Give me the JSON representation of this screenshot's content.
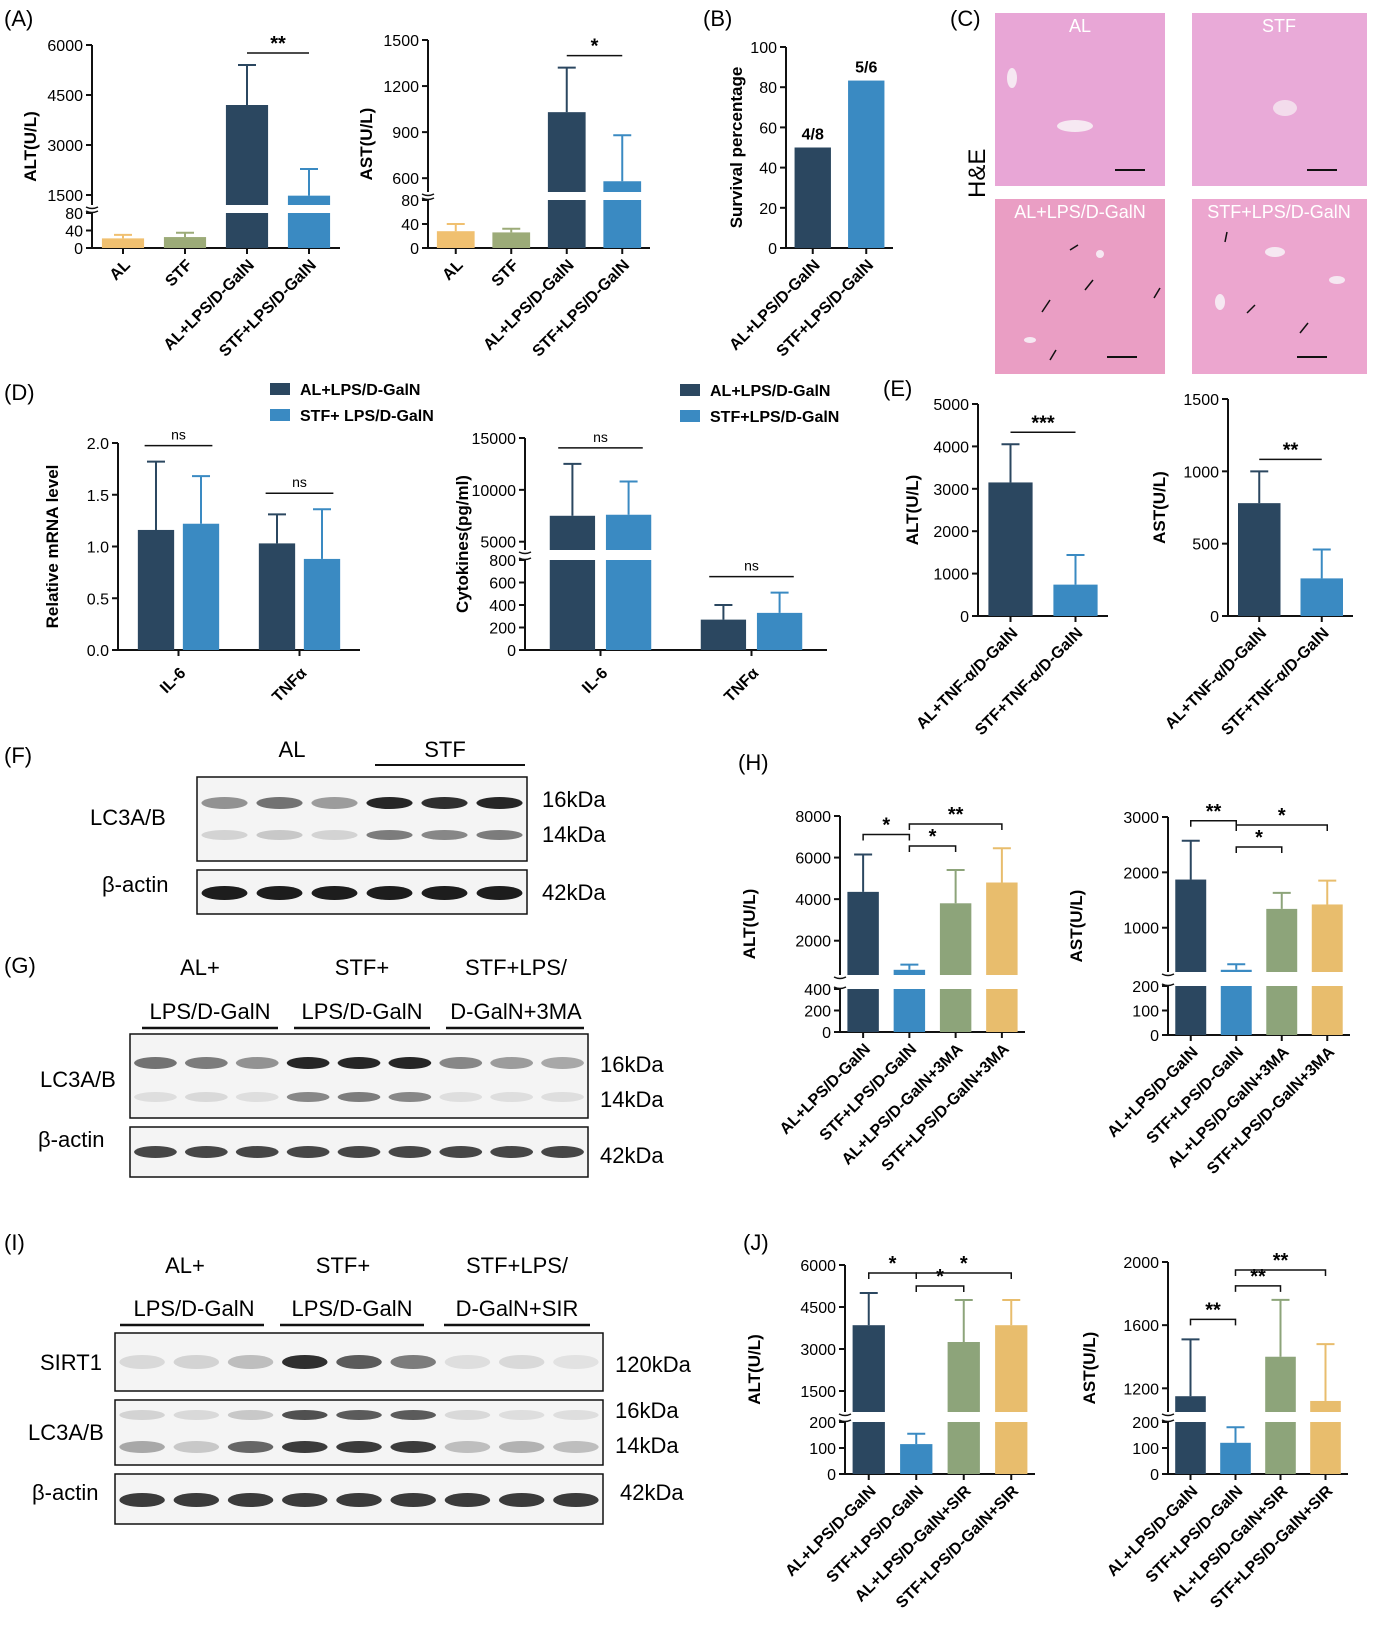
{
  "colors": {
    "AL": "#f0c070",
    "STF": "#9cab78",
    "dark": "#2b4760",
    "light": "#3a8ac2",
    "green3MA": "#8da47a",
    "yellow3MA": "#e8bd6d",
    "he_bg": "#e9a9d4"
  },
  "panels": {
    "A": "(A)",
    "B": "(B)",
    "C": "(C)",
    "D": "(D)",
    "E": "(E)",
    "F": "(F)",
    "G": "(G)",
    "H": "(H)",
    "I": "(I)",
    "J": "(J)"
  },
  "he": {
    "stain": "H&E",
    "labels": [
      "AL",
      "STF",
      "AL+LPS/D-GalN",
      "STF+LPS/D-GalN"
    ]
  },
  "blots": {
    "F": {
      "groups": [
        "AL",
        "STF"
      ],
      "rows": [
        "LC3A/B",
        "β-actin"
      ],
      "kda": [
        "16kDa",
        "14kDa",
        "42kDa"
      ]
    },
    "G": {
      "groups_line1": [
        "AL+",
        "STF+",
        "STF+LPS/"
      ],
      "groups_line2": [
        "LPS/D-GalN",
        "LPS/D-GalN",
        "D-GalN+3MA"
      ],
      "rows": [
        "LC3A/B",
        "β-actin"
      ],
      "kda": [
        "16kDa",
        "14kDa",
        "42kDa"
      ]
    },
    "I": {
      "groups_line1": [
        "AL+",
        "STF+",
        "STF+LPS/"
      ],
      "groups_line2": [
        "LPS/D-GalN",
        "LPS/D-GalN",
        "D-GalN+SIR"
      ],
      "rows": [
        "SIRT1",
        "LC3A/B",
        "β-actin"
      ],
      "kda": [
        "120kDa",
        "16kDa",
        "14kDa",
        "42kDa"
      ]
    }
  },
  "chart_data": [
    {
      "id": "A_ALT",
      "type": "bar",
      "ylabel": "ALT(U/L)",
      "categories": [
        "AL",
        "STF",
        "AL+LPS/D-GalN",
        "STF+LPS/D-GalN"
      ],
      "values": [
        22,
        25,
        4200,
        1480
      ],
      "errors": [
        8,
        10,
        1200,
        800
      ],
      "broken_axis": {
        "lower": [
          0,
          80
        ],
        "upper": [
          1200,
          6000
        ]
      },
      "lower_ticks": [
        "0",
        "40",
        "80"
      ],
      "upper_ticks": [
        "1500",
        "3000",
        "4500",
        "6000"
      ],
      "colors": [
        "#f0c070",
        "#9cab78",
        "#2b4760",
        "#3a8ac2"
      ],
      "sig": [
        {
          "from": 2,
          "to": 3,
          "text": "**"
        }
      ]
    },
    {
      "id": "A_AST",
      "type": "bar",
      "ylabel": "AST(U/L)",
      "categories": [
        "AL",
        "STF",
        "AL+LPS/D-GalN",
        "STF+LPS/D-GalN"
      ],
      "values": [
        28,
        26,
        1030,
        580
      ],
      "errors": [
        12,
        6,
        290,
        300
      ],
      "broken_axis": {
        "lower": [
          0,
          80
        ],
        "upper": [
          510,
          1500
        ]
      },
      "lower_ticks": [
        "0",
        "40",
        "80"
      ],
      "upper_ticks": [
        "600",
        "900",
        "1200",
        "1500"
      ],
      "colors": [
        "#f0c070",
        "#9cab78",
        "#2b4760",
        "#3a8ac2"
      ],
      "sig": [
        {
          "from": 2,
          "to": 3,
          "text": "*"
        }
      ]
    },
    {
      "id": "B_survival",
      "type": "bar",
      "ylabel": "Survival percentage",
      "categories": [
        "AL+LPS/D-GalN",
        "STF+LPS/D-GalN"
      ],
      "values": [
        50,
        83.3
      ],
      "bar_labels": [
        "4/8",
        "5/6"
      ],
      "ylim": [
        0,
        100
      ],
      "ticks": [
        "0",
        "20",
        "40",
        "60",
        "80",
        "100"
      ],
      "colors": [
        "#2b4760",
        "#3a8ac2"
      ]
    },
    {
      "id": "D_mRNA",
      "type": "bar",
      "ylabel": "Relative mRNA level",
      "categories": [
        "IL-6",
        "TNFα"
      ],
      "series": [
        {
          "name": "AL+LPS/D-GalN",
          "values": [
            1.16,
            1.03
          ],
          "errors": [
            0.66,
            0.28
          ]
        },
        {
          "name": "STF+ LPS/D-GalN",
          "values": [
            1.22,
            0.88
          ],
          "errors": [
            0.46,
            0.48
          ]
        }
      ],
      "ylim": [
        0,
        2.0
      ],
      "ticks": [
        "0.0",
        "0.5",
        "1.0",
        "1.5",
        "2.0"
      ],
      "sig": [
        {
          "group": 0,
          "text": "ns"
        },
        {
          "group": 1,
          "text": "ns"
        }
      ]
    },
    {
      "id": "D_cytokines",
      "type": "bar",
      "ylabel": "Cytokines(pg/ml)",
      "categories": [
        "IL-6",
        "TNFα"
      ],
      "series": [
        {
          "name": "AL+LPS/D-GalN",
          "values": [
            7500,
            270
          ],
          "errors": [
            5000,
            130
          ]
        },
        {
          "name": "STF+LPS/D-GalN",
          "values": [
            7600,
            330
          ],
          "errors": [
            3200,
            180
          ]
        }
      ],
      "broken_axis": {
        "lower": [
          0,
          800
        ],
        "upper": [
          4200,
          15000
        ]
      },
      "lower_ticks": [
        "0",
        "200",
        "400",
        "600",
        "800"
      ],
      "upper_ticks": [
        "5000",
        "10000",
        "15000"
      ],
      "sig": [
        {
          "group": 0,
          "text": "ns"
        },
        {
          "group": 1,
          "text": "ns"
        }
      ]
    },
    {
      "id": "E_ALT",
      "type": "bar",
      "ylabel": "ALT(U/L)",
      "categories": [
        "AL+TNF-α/D-GalN",
        "STF+TNF-α/D-GalN"
      ],
      "values": [
        3150,
        740
      ],
      "errors": [
        900,
        700
      ],
      "ylim": [
        0,
        5000
      ],
      "ticks": [
        "0",
        "1000",
        "2000",
        "3000",
        "4000",
        "5000"
      ],
      "colors": [
        "#2b4760",
        "#3a8ac2"
      ],
      "sig": [
        {
          "from": 0,
          "to": 1,
          "text": "***"
        }
      ]
    },
    {
      "id": "E_AST",
      "type": "bar",
      "ylabel": "AST(U/L)",
      "categories": [
        "AL+TNF-α/D-GalN",
        "STF+TNF-α/D-GalN"
      ],
      "values": [
        780,
        260
      ],
      "errors": [
        220,
        200
      ],
      "ylim": [
        0,
        1500
      ],
      "ticks": [
        "0",
        "500",
        "1000",
        "1500"
      ],
      "colors": [
        "#2b4760",
        "#3a8ac2"
      ],
      "sig": [
        {
          "from": 0,
          "to": 1,
          "text": "**"
        }
      ]
    },
    {
      "id": "H_ALT",
      "type": "bar",
      "ylabel": "ALT(U/L)",
      "categories": [
        "AL+LPS/D-GalN",
        "STF+LPS/D-GalN",
        "AL+LPS/D-GalN+3MA",
        "STF+LPS/D-GalN+3MA"
      ],
      "values": [
        4350,
        600,
        3800,
        4800
      ],
      "errors": [
        1800,
        250,
        1600,
        1650
      ],
      "broken_axis": {
        "lower": [
          0,
          400
        ],
        "upper": [
          350,
          8000
        ]
      },
      "lower_ticks": [
        "0",
        "200",
        "400"
      ],
      "upper_ticks": [
        "2000",
        "4000",
        "6000",
        "8000"
      ],
      "colors": [
        "#2b4760",
        "#3a8ac2",
        "#8da47a",
        "#e8bd6d"
      ],
      "sig": [
        {
          "from": 0,
          "to": 1,
          "text": "*"
        },
        {
          "from": 1,
          "to": 2,
          "text": "*"
        },
        {
          "from": 1,
          "to": 3,
          "text": "**"
        }
      ]
    },
    {
      "id": "H_AST",
      "type": "bar",
      "ylabel": "AST(U/L)",
      "categories": [
        "AL+LPS/D-GalN",
        "STF+LPS/D-GalN",
        "AL+LPS/D-GalN+3MA",
        "STF+LPS/D-GalN+3MA"
      ],
      "values": [
        1870,
        240,
        1340,
        1420
      ],
      "errors": [
        700,
        100,
        290,
        430
      ],
      "broken_axis": {
        "lower": [
          0,
          200
        ],
        "upper": [
          200,
          3000
        ]
      },
      "lower_ticks": [
        "0",
        "100",
        "200"
      ],
      "upper_ticks": [
        "1000",
        "2000",
        "3000"
      ],
      "colors": [
        "#2b4760",
        "#3a8ac2",
        "#8da47a",
        "#e8bd6d"
      ],
      "sig": [
        {
          "from": 0,
          "to": 1,
          "text": "**"
        },
        {
          "from": 1,
          "to": 2,
          "text": "*"
        },
        {
          "from": 1,
          "to": 3,
          "text": "*"
        }
      ]
    },
    {
      "id": "J_ALT",
      "type": "bar",
      "ylabel": "ALT(U/L)",
      "categories": [
        "AL+LPS/D-GalN",
        "STF+LPS/D-GalN",
        "AL+LPS/D-GalN+SIR",
        "STF+LPS/D-GalN+SIR"
      ],
      "values": [
        3850,
        115,
        3250,
        3850
      ],
      "errors": [
        1150,
        40,
        1500,
        900
      ],
      "broken_axis": {
        "lower": [
          0,
          200
        ],
        "upper": [
          750,
          6000
        ]
      },
      "lower_ticks": [
        "0",
        "100",
        "200"
      ],
      "upper_ticks": [
        "1500",
        "3000",
        "4500",
        "6000"
      ],
      "colors": [
        "#2b4760",
        "#3a8ac2",
        "#8da47a",
        "#e8bd6d"
      ],
      "sig": [
        {
          "from": 0,
          "to": 1,
          "text": "*"
        },
        {
          "from": 1,
          "to": 2,
          "text": "*"
        },
        {
          "from": 1,
          "to": 3,
          "text": "*"
        }
      ]
    },
    {
      "id": "J_AST",
      "type": "bar",
      "ylabel": "AST(U/L)",
      "categories": [
        "AL+LPS/D-GalN",
        "STF+LPS/D-GalN",
        "AL+LPS/D-GalN+SIR",
        "STF+LPS/D-GalN+SIR"
      ],
      "values": [
        1150,
        120,
        1400,
        1120
      ],
      "errors": [
        360,
        60,
        360,
        360
      ],
      "broken_axis": {
        "lower": [
          0,
          200
        ],
        "upper": [
          1050,
          2000
        ]
      },
      "lower_ticks": [
        "0",
        "100",
        "200"
      ],
      "upper_ticks": [
        "1200",
        "1600",
        "2000"
      ],
      "colors": [
        "#2b4760",
        "#3a8ac2",
        "#8da47a",
        "#e8bd6d"
      ],
      "sig": [
        {
          "from": 0,
          "to": 1,
          "text": "**"
        },
        {
          "from": 1,
          "to": 2,
          "text": "**"
        },
        {
          "from": 1,
          "to": 3,
          "text": "**"
        }
      ]
    }
  ]
}
